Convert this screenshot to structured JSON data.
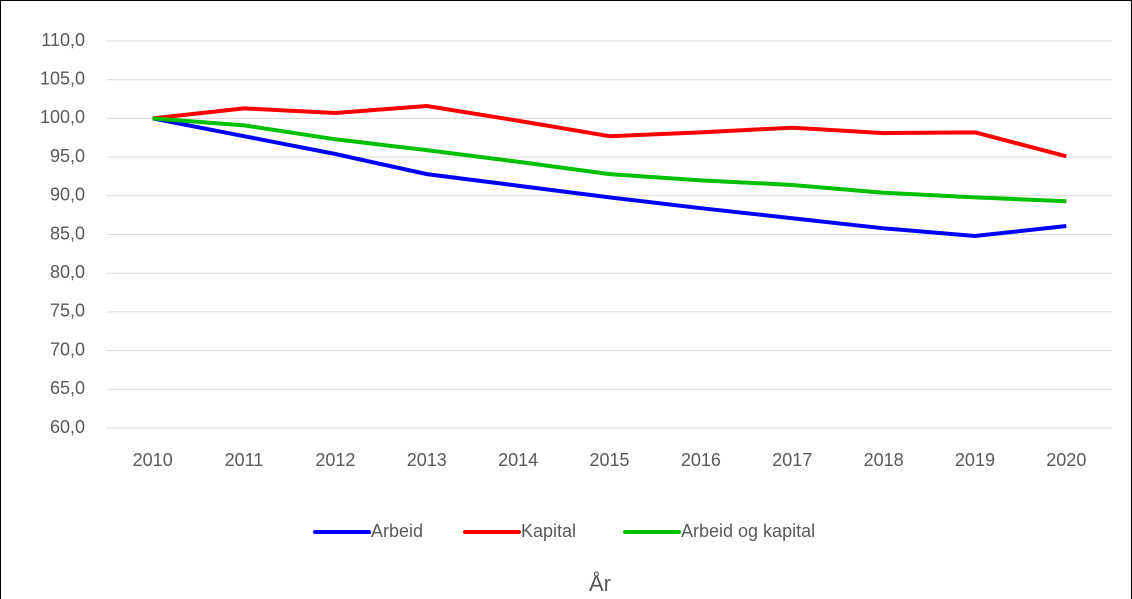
{
  "chart_data": {
    "type": "line",
    "x_label": "År",
    "categories": [
      "2010",
      "2011",
      "2012",
      "2013",
      "2014",
      "2015",
      "2016",
      "2017",
      "2018",
      "2019",
      "2020"
    ],
    "series": [
      {
        "name": "Arbeid",
        "color": "#0000ff",
        "values": [
          100,
          97.7,
          95.4,
          92.8,
          91.3,
          89.8,
          88.4,
          87.1,
          85.8,
          84.8,
          86.1
        ]
      },
      {
        "name": "Kapital",
        "color": "#ff0000",
        "values": [
          100,
          101.3,
          100.7,
          101.6,
          99.7,
          97.7,
          98.2,
          98.8,
          98.1,
          98.2,
          95.1
        ]
      },
      {
        "name": "Arbeid og kapital",
        "color": "#00c000",
        "values": [
          100,
          99.1,
          97.3,
          95.9,
          94.4,
          92.8,
          92.0,
          91.4,
          90.4,
          89.8,
          89.3
        ]
      }
    ],
    "ylim": [
      60,
      110
    ],
    "yticks": [
      {
        "value": 60,
        "label": "60,0"
      },
      {
        "value": 65,
        "label": "65,0"
      },
      {
        "value": 70,
        "label": "70,0"
      },
      {
        "value": 75,
        "label": "75,0"
      },
      {
        "value": 80,
        "label": "80,0"
      },
      {
        "value": 85,
        "label": "85,0"
      },
      {
        "value": 90,
        "label": "90,0"
      },
      {
        "value": 95,
        "label": "95,0"
      },
      {
        "value": 100,
        "label": "100,0"
      },
      {
        "value": 105,
        "label": "105,0"
      },
      {
        "value": 110,
        "label": "110,0"
      }
    ],
    "grid": true,
    "legend": "bottom"
  }
}
